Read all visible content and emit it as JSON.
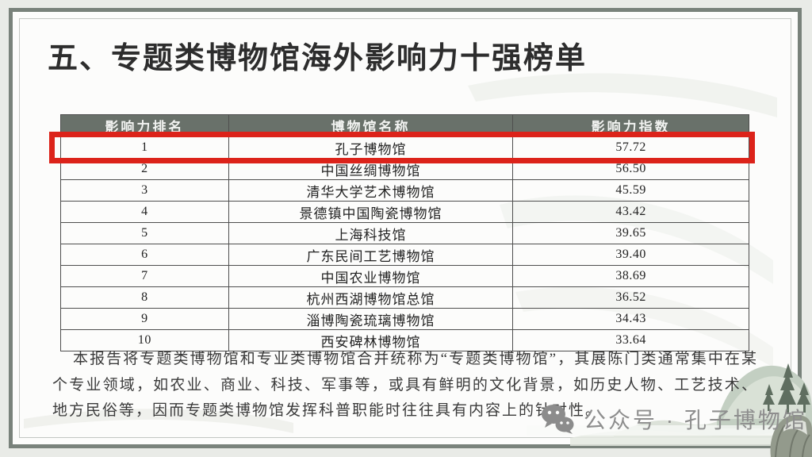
{
  "slide": {
    "title": "五、专题类博物馆海外影响力十强榜单",
    "table": {
      "headers": [
        "影响力排名",
        "博物馆名称",
        "影响力指数"
      ],
      "rows": [
        {
          "rank": "1",
          "name": "孔子博物馆",
          "index": "57.72",
          "highlighted": true
        },
        {
          "rank": "2",
          "name": "中国丝绸博物馆",
          "index": "56.50",
          "highlighted": false
        },
        {
          "rank": "3",
          "name": "清华大学艺术博物馆",
          "index": "45.59",
          "highlighted": false
        },
        {
          "rank": "4",
          "name": "景德镇中国陶瓷博物馆",
          "index": "43.42",
          "highlighted": false
        },
        {
          "rank": "5",
          "name": "上海科技馆",
          "index": "39.65",
          "highlighted": false
        },
        {
          "rank": "6",
          "name": "广东民间工艺博物馆",
          "index": "39.40",
          "highlighted": false
        },
        {
          "rank": "7",
          "name": "中国农业博物馆",
          "index": "38.69",
          "highlighted": false
        },
        {
          "rank": "8",
          "name": "杭州西湖博物馆总馆",
          "index": "36.52",
          "highlighted": false
        },
        {
          "rank": "9",
          "name": "淄博陶瓷琉璃博物馆",
          "index": "34.43",
          "highlighted": false
        },
        {
          "rank": "10",
          "name": "西安碑林博物馆",
          "index": "33.64",
          "highlighted": false
        }
      ]
    },
    "paragraph": "本报告将专题类博物馆和专业类博物馆合并统称为“专题类博物馆”，其展陈门类通常集中在某个专业领域，如农业、商业、科技、军事等，或具有鲜明的文化背景，如历史人物、工艺技术、地方民俗等，因而专题类博物馆发挥科普职能时往往具有内容上的针对性。",
    "watermark": {
      "icon": "wechat-icon",
      "text": "公众号 · 孔子博物馆"
    },
    "colors": {
      "header_bg": "#69716a",
      "highlight_red": "#dc231a",
      "frame": "#79827b",
      "page_bg": "#e9ebe7"
    }
  }
}
